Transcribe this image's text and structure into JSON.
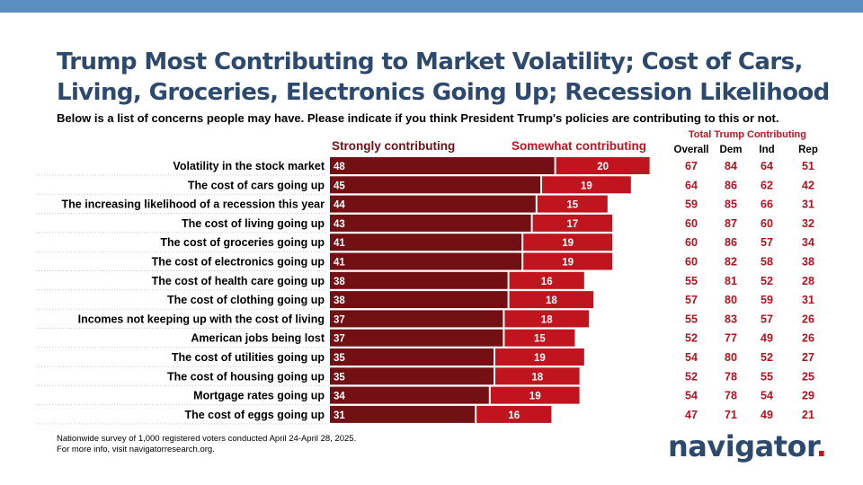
{
  "title": "Trump Most Contributing to Market Volatility; Cost of Cars, Living, Groceries, Electronics Going Up; Recession Likelihood",
  "subtitle": "Below is a list of concerns people may have. Please indicate if you think President Trump's policies are contributing to this or not.",
  "footnote_line1": "Nationwide survey of 1,000 registered voters conducted April 24-April 28, 2025.",
  "footnote_line2": "For more info, visit navigatorresearch.org.",
  "logo_text": "navigator",
  "logo_dot": ".",
  "colors": {
    "strongly": "#721014",
    "somewhat": "#c0141e",
    "table_text": "#b3121e",
    "title": "#2d4a6e",
    "top_bar": "#5b8fc4"
  },
  "chart_data": {
    "type": "bar",
    "orientation": "horizontal",
    "stacked": true,
    "categories": [
      "Volatility in the stock market",
      "The cost of cars going up",
      "The increasing likelihood of a recession this year",
      "The cost of living going up",
      "The cost of groceries going up",
      "The cost of electronics going up",
      "The cost of health care going up",
      "The cost of clothing going up",
      "Incomes not keeping up with the cost of living",
      "American jobs being lost",
      "The cost of utilities going up",
      "The cost of housing going up",
      "Mortgage rates going up",
      "The cost of eggs going up"
    ],
    "series": [
      {
        "name": "Strongly contributing",
        "color": "#721014",
        "values": [
          48,
          45,
          44,
          43,
          41,
          41,
          38,
          38,
          37,
          37,
          35,
          35,
          34,
          31
        ]
      },
      {
        "name": "Somewhat contributing",
        "color": "#c0141e",
        "values": [
          20,
          19,
          15,
          17,
          19,
          19,
          16,
          18,
          18,
          15,
          19,
          18,
          19,
          16
        ]
      }
    ],
    "table": {
      "title": "Total Trump Contributing",
      "columns": [
        "Overall",
        "Dem",
        "Ind",
        "Rep"
      ],
      "rows": [
        [
          67,
          84,
          64,
          51
        ],
        [
          64,
          86,
          62,
          42
        ],
        [
          59,
          85,
          66,
          31
        ],
        [
          60,
          87,
          60,
          32
        ],
        [
          60,
          86,
          57,
          34
        ],
        [
          60,
          82,
          58,
          38
        ],
        [
          55,
          81,
          52,
          28
        ],
        [
          57,
          80,
          59,
          31
        ],
        [
          55,
          83,
          57,
          26
        ],
        [
          52,
          77,
          49,
          26
        ],
        [
          54,
          80,
          52,
          27
        ],
        [
          52,
          78,
          55,
          25
        ],
        [
          54,
          78,
          54,
          29
        ],
        [
          47,
          71,
          49,
          21
        ]
      ]
    }
  }
}
